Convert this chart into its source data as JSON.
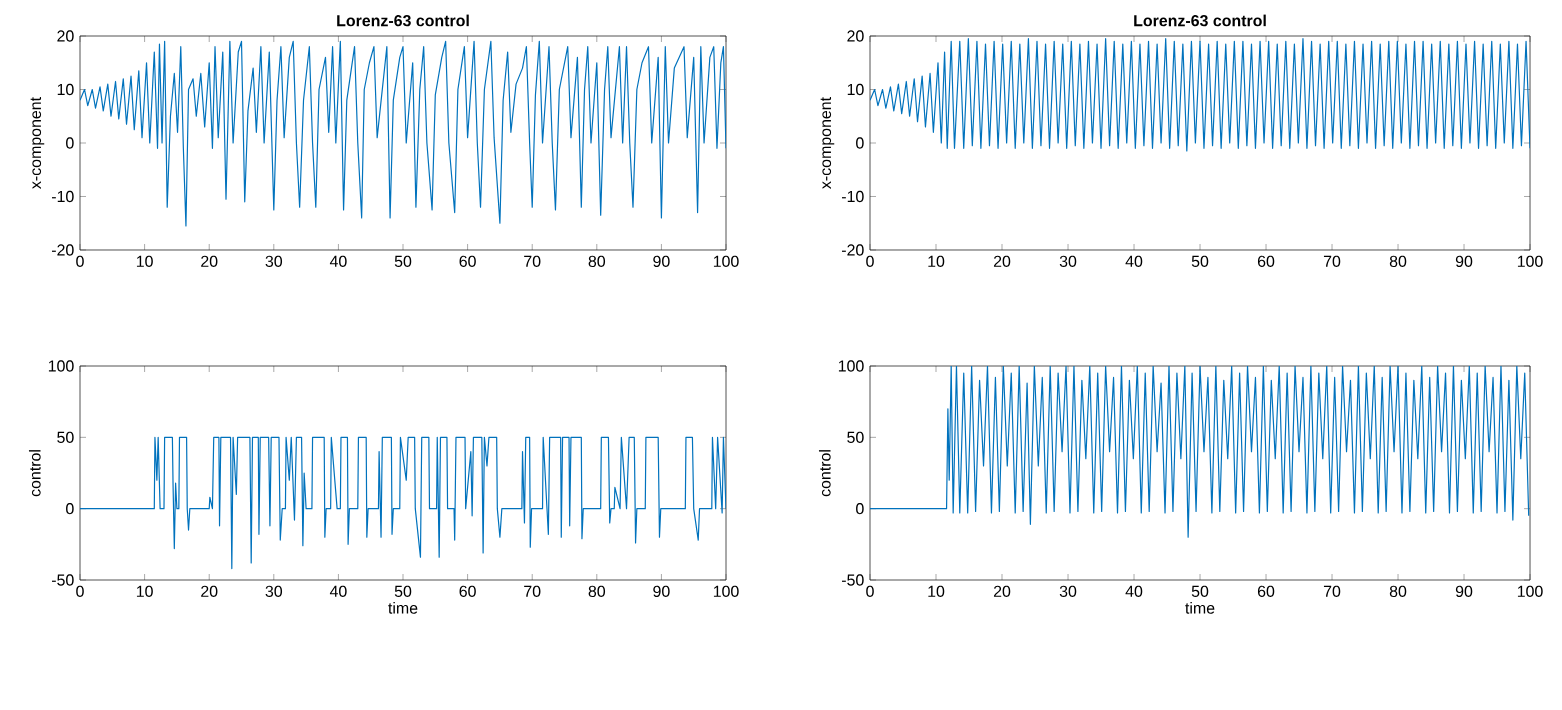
{
  "chart_data": [
    {
      "type": "line",
      "title": "Lorenz-63 control",
      "ylabel": "x-component",
      "color": "#0072bd",
      "xlim": [
        0,
        100
      ],
      "ylim": [
        -20,
        20
      ],
      "xticks": [
        0,
        10,
        20,
        30,
        40,
        50,
        60,
        70,
        80,
        90,
        100
      ],
      "yticks": [
        -20,
        -10,
        0,
        10,
        20
      ],
      "x": [
        0,
        0.7,
        1.2,
        1.9,
        2.4,
        3.1,
        3.6,
        4.3,
        4.8,
        5.5,
        6,
        6.7,
        7.2,
        7.9,
        8.4,
        9.1,
        9.6,
        10.3,
        10.8,
        11.5,
        12,
        12.3,
        12.7,
        13.1,
        13.5,
        14,
        14.6,
        15.1,
        15.6,
        16,
        16.4,
        16.8,
        17.5,
        18,
        18.7,
        19.3,
        20,
        20.5,
        20.9,
        21.4,
        22.1,
        22.6,
        23.2,
        23.7,
        24.5,
        25,
        25.5,
        26,
        26.8,
        27.3,
        28,
        28.5,
        29.3,
        30,
        30.5,
        31.1,
        31.6,
        32.4,
        33,
        33.5,
        34,
        34.6,
        35.5,
        36,
        36.5,
        37,
        38,
        38.5,
        39.1,
        39.6,
        40.3,
        40.8,
        41.3,
        42.5,
        43,
        43.6,
        44,
        44.8,
        45.5,
        46,
        47.5,
        48,
        48.5,
        49.5,
        50,
        50.5,
        51.5,
        52,
        52.6,
        53.2,
        53.7,
        54.5,
        55,
        56,
        56.6,
        57.1,
        58,
        58.5,
        59.5,
        60,
        61,
        61.5,
        62,
        62.6,
        63.6,
        64.1,
        65,
        65.5,
        66.2,
        66.7,
        67.5,
        68.5,
        69.1,
        69.6,
        70,
        70.5,
        71.1,
        71.6,
        72.6,
        73.1,
        73.6,
        74.2,
        75.5,
        76,
        77,
        77.6,
        78.1,
        78.6,
        79.1,
        80,
        80.6,
        81.2,
        81.7,
        82.2,
        83.5,
        84,
        84.6,
        85.1,
        85.6,
        86.2,
        87,
        88,
        88.5,
        89.5,
        90,
        90.6,
        91.1,
        92,
        93.5,
        94,
        95,
        95.6,
        96.1,
        96.6,
        97.5,
        98.1,
        98.6,
        99.2,
        99.6,
        100
      ],
      "values": [
        8,
        10,
        7,
        10,
        6.5,
        10.5,
        6,
        11,
        5,
        11.5,
        4.5,
        12,
        3.5,
        12.5,
        2.5,
        13.5,
        1,
        15,
        0,
        17,
        -1,
        18.5,
        0,
        19,
        -12,
        5,
        13,
        2,
        18,
        -1,
        -15.5,
        10,
        12,
        5,
        13,
        3,
        15,
        -1,
        18,
        1,
        17,
        -10.5,
        19,
        0,
        17,
        19,
        -11,
        6,
        14,
        2,
        18,
        0,
        17,
        -12.5,
        8,
        18,
        1,
        16,
        19,
        0,
        -12,
        8,
        18,
        0,
        -12,
        10,
        16,
        2,
        18,
        0,
        19,
        -12.5,
        8,
        18,
        0,
        -14,
        10,
        15,
        18,
        1,
        18,
        -14,
        8,
        16,
        18,
        0,
        15,
        -12,
        10,
        18,
        0,
        -12.5,
        9,
        16,
        19,
        0,
        -13,
        10,
        18,
        1,
        19,
        0,
        -12,
        10,
        19,
        1,
        -15,
        8,
        17,
        2,
        11,
        14,
        18,
        0,
        -12,
        9,
        19,
        0,
        18,
        0,
        -12.5,
        10,
        18,
        1,
        16,
        -12,
        10,
        18,
        0,
        15,
        -13.5,
        10,
        18,
        1,
        18,
        0,
        18,
        0,
        -12,
        10,
        15,
        18,
        0,
        16,
        -14,
        18,
        0,
        14,
        18,
        1,
        16,
        -13,
        18,
        0,
        16,
        18,
        -1,
        15,
        18,
        -1
      ]
    },
    {
      "type": "line",
      "title": "Lorenz-63 control",
      "ylabel": "x-component",
      "color": "#0072bd",
      "xlim": [
        0,
        100
      ],
      "ylim": [
        -20,
        20
      ],
      "xticks": [
        0,
        10,
        20,
        30,
        40,
        50,
        60,
        70,
        80,
        90,
        100
      ],
      "yticks": [
        -20,
        -10,
        0,
        10,
        20
      ],
      "x": [
        0,
        0.7,
        1.2,
        1.9,
        2.4,
        3.1,
        3.6,
        4.3,
        4.8,
        5.5,
        6,
        6.7,
        7.2,
        7.9,
        8.4,
        9.1,
        9.6,
        10.3,
        10.8,
        11.3,
        11.7,
        12.3,
        12.8,
        13.6,
        14.2,
        14.9,
        15.5,
        16.2,
        16.8,
        17.5,
        18.1,
        18.8,
        19.4,
        20.1,
        20.7,
        21.4,
        22,
        22.7,
        23.3,
        24,
        24.6,
        25.3,
        25.9,
        26.6,
        27.2,
        27.9,
        28.5,
        29.2,
        29.8,
        30.5,
        31.1,
        31.8,
        32.4,
        33.1,
        33.7,
        34.4,
        35,
        35.7,
        36.3,
        37,
        37.6,
        38.3,
        38.9,
        39.6,
        40.2,
        40.9,
        41.5,
        42.2,
        42.8,
        43.5,
        44.1,
        44.8,
        45.4,
        46.1,
        46.7,
        47.4,
        48,
        48.7,
        49.3,
        50,
        50.6,
        51.3,
        51.9,
        52.6,
        53.2,
        53.9,
        54.5,
        55.2,
        55.8,
        56.5,
        57.1,
        57.8,
        58.4,
        59.1,
        59.7,
        60.4,
        61,
        61.7,
        62.3,
        63,
        63.6,
        64.3,
        64.9,
        65.6,
        66.2,
        66.9,
        67.5,
        68.2,
        68.8,
        69.5,
        70.1,
        70.8,
        71.4,
        72.1,
        72.7,
        73.4,
        74,
        74.7,
        75.3,
        76,
        76.6,
        77.3,
        77.9,
        78.6,
        79.2,
        79.9,
        80.5,
        81.2,
        81.8,
        82.5,
        83.1,
        83.8,
        84.4,
        85.1,
        85.7,
        86.4,
        87,
        87.7,
        88.3,
        89,
        89.6,
        90.3,
        90.9,
        91.6,
        92.2,
        92.9,
        93.5,
        94.2,
        94.8,
        95.5,
        96.1,
        96.8,
        97.4,
        98.1,
        98.7,
        99.4,
        100
      ],
      "values": [
        8,
        10,
        7,
        10,
        6.5,
        10.5,
        6,
        11,
        5.5,
        11.5,
        5,
        12,
        4,
        12.5,
        3,
        13,
        2,
        15,
        0,
        17,
        -1,
        19,
        -1,
        19,
        -1,
        19.5,
        -0.5,
        19,
        -1,
        18.5,
        -0.5,
        19,
        -1,
        18.5,
        0,
        19,
        -1,
        18.5,
        0,
        19.5,
        -1,
        19,
        -0.5,
        18.5,
        -1,
        19,
        0,
        18.5,
        -1,
        19,
        -0.5,
        18.5,
        -1,
        19,
        0,
        18.5,
        -1,
        19.5,
        -0.5,
        19,
        -1,
        18.5,
        0,
        19,
        -1,
        18.5,
        -0.5,
        19,
        -1,
        18.5,
        0,
        19.5,
        -1,
        19,
        -0.5,
        18.5,
        -1.5,
        19,
        0,
        19,
        -1,
        18.5,
        -0.5,
        19,
        -1,
        18.5,
        0,
        19,
        -1,
        19,
        -0.5,
        18.5,
        -1,
        19,
        0,
        19,
        -1,
        18.5,
        -0.5,
        19,
        -1,
        18.5,
        0,
        19.5,
        -1,
        19,
        -0.5,
        18.5,
        -1,
        19,
        0,
        19,
        -1,
        18.5,
        -0.5,
        19,
        -1,
        18.5,
        0,
        19,
        -1,
        18.5,
        -0.5,
        19,
        -1,
        19,
        0,
        18.5,
        -1,
        19,
        -0.5,
        19,
        -1,
        18.5,
        0,
        19,
        -1,
        18.5,
        -0.5,
        19,
        -1,
        18.5,
        0,
        19,
        -1,
        18.5,
        -0.5,
        19,
        -1,
        18.5,
        0,
        19,
        -1,
        18.5,
        -0.5,
        19,
        -1
      ]
    },
    {
      "type": "line",
      "xlabel": "time",
      "ylabel": "control",
      "color": "#0072bd",
      "xlim": [
        0,
        100
      ],
      "ylim": [
        -50,
        100
      ],
      "xticks": [
        0,
        10,
        20,
        30,
        40,
        50,
        60,
        70,
        80,
        90,
        100
      ],
      "yticks": [
        -50,
        0,
        50,
        100
      ],
      "x": [
        0,
        11.5,
        11.6,
        11.9,
        12.1,
        12.4,
        13,
        13.1,
        14.3,
        14.4,
        14.6,
        14.8,
        15,
        15.3,
        15.4,
        16.5,
        16.6,
        16.8,
        17,
        20,
        20.1,
        20.5,
        20.7,
        21.5,
        21.6,
        21.8,
        23.3,
        23.5,
        23.7,
        24.2,
        24.4,
        26.3,
        26.5,
        26.7,
        27.6,
        27.7,
        27.9,
        29.2,
        29.4,
        29.6,
        30.8,
        31,
        31.3,
        31.8,
        31.9,
        32.4,
        32.7,
        33.2,
        33.5,
        34.3,
        34.5,
        34.7,
        35,
        35.9,
        36,
        37.8,
        37.9,
        38.1,
        38.8,
        38.9,
        39.8,
        40.3,
        40.4,
        41.4,
        41.5,
        41.7,
        43,
        43.1,
        44.3,
        44.4,
        44.6,
        46.2,
        46.3,
        46.6,
        46.8,
        48.2,
        48.3,
        48.5,
        49.5,
        49.6,
        50.5,
        50.8,
        51.8,
        51.9,
        52.7,
        52.9,
        54,
        54.1,
        55.2,
        55.3,
        55.6,
        55.8,
        56.8,
        56.9,
        57.9,
        58,
        58.2,
        59.6,
        59.7,
        60.5,
        60.7,
        60.9,
        62.2,
        62.4,
        62.6,
        63,
        63.3,
        64.5,
        64.6,
        65,
        65.3,
        68.4,
        68.5,
        68.8,
        69,
        69.6,
        69.7,
        69.9,
        71.6,
        71.7,
        72.5,
        72.7,
        74.4,
        74.5,
        74.7,
        75.7,
        75.8,
        76,
        77.6,
        77.7,
        77.9,
        80.6,
        80.7,
        81.8,
        82,
        82.2,
        82.7,
        82.8,
        83.6,
        83.8,
        84.6,
        85,
        85.8,
        86,
        86.2,
        87.5,
        87.6,
        89.5,
        89.7,
        89.9,
        93.7,
        93.8,
        94.8,
        95,
        95.7,
        95.9,
        97.8,
        97.9,
        98.4,
        98.7,
        99.4,
        99.6,
        100
      ],
      "values": [
        0,
        0,
        50,
        20,
        50,
        0,
        0,
        50,
        50,
        18,
        -28,
        18,
        0,
        0,
        50,
        50,
        0,
        -15,
        0,
        0,
        8,
        0,
        50,
        50,
        -12,
        50,
        50,
        -42,
        50,
        10,
        50,
        50,
        -38,
        50,
        50,
        -18,
        50,
        50,
        -12,
        50,
        50,
        -22,
        0,
        0,
        50,
        20,
        50,
        -8,
        50,
        50,
        -26,
        25,
        0,
        0,
        50,
        50,
        -20,
        0,
        0,
        50,
        0,
        0,
        50,
        50,
        -25,
        0,
        0,
        50,
        50,
        -20,
        0,
        0,
        40,
        -20,
        50,
        50,
        -18,
        0,
        0,
        50,
        20,
        50,
        50,
        0,
        -34,
        50,
        50,
        0,
        0,
        50,
        -34,
        50,
        50,
        0,
        0,
        -22,
        50,
        50,
        0,
        40,
        -5,
        50,
        50,
        -31,
        50,
        30,
        50,
        50,
        0,
        -20,
        0,
        0,
        40,
        -10,
        50,
        50,
        -27,
        0,
        0,
        50,
        -18,
        50,
        50,
        -20,
        50,
        50,
        -12,
        50,
        50,
        -21,
        0,
        0,
        50,
        50,
        -10,
        0,
        0,
        15,
        0,
        50,
        0,
        50,
        50,
        -24,
        0,
        0,
        50,
        50,
        -20,
        0,
        0,
        50,
        50,
        0,
        -22,
        0,
        0,
        50,
        0,
        50,
        -3,
        50,
        0
      ]
    },
    {
      "type": "line",
      "xlabel": "time",
      "ylabel": "control",
      "color": "#0072bd",
      "xlim": [
        0,
        100
      ],
      "ylim": [
        -50,
        100
      ],
      "xticks": [
        0,
        10,
        20,
        30,
        40,
        50,
        60,
        70,
        80,
        90,
        100
      ],
      "yticks": [
        -50,
        0,
        50,
        100
      ],
      "x": [
        0,
        11.6,
        11.8,
        12,
        12.3,
        12.6,
        13.1,
        13.6,
        14.2,
        14.8,
        15.4,
        16,
        16.6,
        17.2,
        17.8,
        18.4,
        19,
        19.6,
        20.2,
        20.8,
        21.4,
        22,
        22.6,
        23.2,
        23.8,
        24.3,
        24.9,
        25.5,
        26.1,
        26.7,
        27.3,
        27.9,
        28.5,
        29.1,
        29.7,
        30.3,
        30.9,
        31.5,
        32.1,
        32.7,
        33.3,
        33.9,
        34.5,
        35.1,
        35.7,
        36.3,
        36.9,
        37.5,
        38.1,
        38.7,
        39.3,
        39.9,
        40.5,
        41.1,
        41.7,
        42.3,
        42.9,
        43.5,
        44.1,
        44.7,
        45.3,
        45.9,
        46.5,
        47.1,
        47.7,
        48.2,
        48.8,
        49.4,
        50,
        50.6,
        51.2,
        51.8,
        52.4,
        53,
        53.6,
        54.2,
        54.8,
        55.4,
        56,
        56.6,
        57.2,
        57.8,
        58.4,
        59,
        59.6,
        60.2,
        60.8,
        61.4,
        62,
        62.6,
        63.2,
        63.8,
        64.4,
        65,
        65.6,
        66.2,
        66.8,
        67.4,
        68,
        68.6,
        69.2,
        69.8,
        70.4,
        71,
        71.6,
        72.2,
        72.8,
        73.4,
        74,
        74.6,
        75.2,
        75.8,
        76.4,
        77,
        77.6,
        78.2,
        78.8,
        79.4,
        80,
        80.6,
        81.2,
        81.8,
        82.4,
        83,
        83.6,
        84.2,
        84.8,
        85.4,
        86,
        86.6,
        87.2,
        87.8,
        88.4,
        89,
        89.6,
        90.2,
        90.8,
        91.4,
        92,
        92.6,
        93.2,
        93.8,
        94.4,
        95,
        95.6,
        96.2,
        96.8,
        97.4,
        98,
        98.6,
        99.2,
        99.8
      ],
      "values": [
        0,
        0,
        70,
        20,
        100,
        -3,
        100,
        -3,
        95,
        -3,
        100,
        -2,
        90,
        30,
        100,
        -3,
        92,
        -2,
        100,
        30,
        95,
        -3,
        100,
        -2,
        88,
        -11,
        100,
        30,
        92,
        -3,
        100,
        -2,
        95,
        40,
        100,
        -3,
        100,
        -2,
        90,
        35,
        100,
        -3,
        95,
        -2,
        100,
        40,
        92,
        -3,
        100,
        -2,
        90,
        35,
        100,
        -3,
        95,
        -2,
        100,
        40,
        88,
        -3,
        100,
        -2,
        95,
        35,
        100,
        -20,
        95,
        -2,
        100,
        40,
        92,
        -3,
        100,
        -2,
        90,
        35,
        100,
        -3,
        95,
        -2,
        100,
        40,
        92,
        -3,
        100,
        -2,
        90,
        35,
        100,
        -3,
        95,
        -2,
        100,
        40,
        92,
        -3,
        100,
        -2,
        95,
        35,
        100,
        -3,
        92,
        -2,
        100,
        40,
        90,
        -3,
        100,
        -2,
        95,
        35,
        100,
        -3,
        92,
        -2,
        100,
        40,
        100,
        -3,
        95,
        -2,
        90,
        35,
        100,
        -3,
        92,
        -2,
        100,
        40,
        95,
        -3,
        100,
        -2,
        90,
        35,
        100,
        -3,
        95,
        -2,
        100,
        40,
        92,
        -3,
        100,
        -2,
        90,
        -8,
        100,
        35,
        95,
        -5
      ]
    }
  ]
}
